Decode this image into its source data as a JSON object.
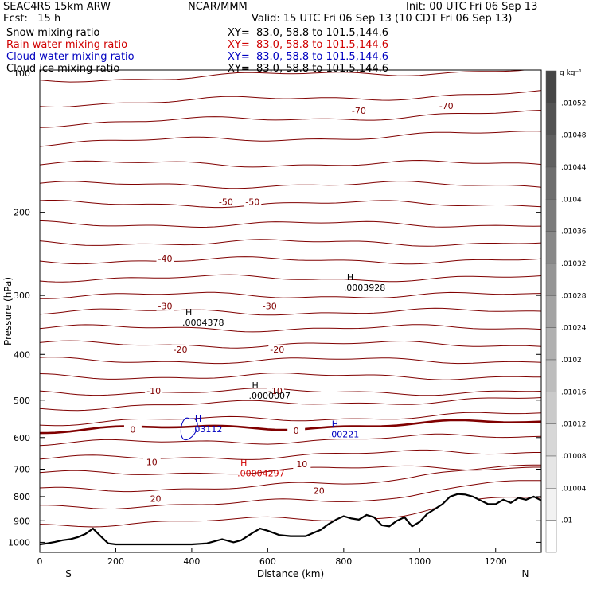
{
  "header": {
    "left1": "SEAC4RS 15km ARW",
    "left2": "Fcst:   15 h",
    "center": "NCAR/MMM",
    "init": "Init: 00 UTC Fri 06 Sep 13",
    "valid": "Valid: 15 UTC Fri 06 Sep 13 (10 CDT Fri 06 Sep 13)",
    "fields": [
      {
        "name": "Snow mixing ratio",
        "xy": "XY=  83.0, 58.8 to 101.5,144.6",
        "color": "#000000"
      },
      {
        "name": "Rain water mixing ratio",
        "xy": "XY=  83.0, 58.8 to 101.5,144.6",
        "color": "#d00000"
      },
      {
        "name": "Cloud water mixing ratio",
        "xy": "XY=  83.0, 58.8 to 101.5,144.6",
        "color": "#0000c0"
      },
      {
        "name": "Cloud ice mixing ratio",
        "xy": "XY=  83.0, 58.8 to 101.5,144.6",
        "color": "#000000"
      }
    ]
  },
  "chart_data": {
    "type": "cross-section",
    "xlabel": "Distance (km)",
    "ylabel": "Pressure (hPa)",
    "xlim": [
      0,
      1320
    ],
    "ylim": [
      1050,
      100
    ],
    "yscale": "log",
    "x_ticks": [
      "0",
      "200",
      "400",
      "600",
      "800",
      "1000",
      "1200"
    ],
    "y_ticks": [
      "200",
      "300",
      "400",
      "500",
      "600",
      "700",
      "800",
      "900",
      "1000"
    ],
    "y_top_tick": "100",
    "end_labels": {
      "left": "S",
      "right": "N"
    },
    "temperature_contours": {
      "units": "C",
      "labels": [
        {
          "x": 840,
          "p": 122,
          "text": "-70"
        },
        {
          "x": 1070,
          "p": 119,
          "text": "-70"
        },
        {
          "x": 490,
          "p": 190,
          "text": "-50"
        },
        {
          "x": 560,
          "p": 190,
          "text": "-50"
        },
        {
          "x": 330,
          "p": 251,
          "text": "-40"
        },
        {
          "x": 330,
          "p": 316,
          "text": "-30"
        },
        {
          "x": 605,
          "p": 316,
          "text": "-30"
        },
        {
          "x": 370,
          "p": 390,
          "text": "-20"
        },
        {
          "x": 625,
          "p": 390,
          "text": "-20"
        },
        {
          "x": 300,
          "p": 478,
          "text": "-10"
        },
        {
          "x": 620,
          "p": 478,
          "text": "-10"
        },
        {
          "x": 245,
          "p": 577,
          "text": "0"
        },
        {
          "x": 675,
          "p": 580,
          "text": "0"
        },
        {
          "x": 295,
          "p": 676,
          "text": "10"
        },
        {
          "x": 690,
          "p": 683,
          "text": "10"
        },
        {
          "x": 305,
          "p": 808,
          "text": "20"
        },
        {
          "x": 735,
          "p": 778,
          "text": "20"
        }
      ]
    },
    "maxima": [
      {
        "field": "Snow mixing ratio",
        "x": 800,
        "p": 282,
        "text": ".0003928",
        "color": "#000000"
      },
      {
        "field": "Snow mixing ratio",
        "x": 375,
        "p": 334,
        "text": ".0004378",
        "color": "#000000"
      },
      {
        "field": "Cloud ice mixing ratio",
        "x": 550,
        "p": 478,
        "text": ".0000007",
        "color": "#000000"
      },
      {
        "field": "Cloud water mixing ratio",
        "x": 400,
        "p": 562,
        "text": ".03112",
        "color": "#0000c0"
      },
      {
        "field": "Cloud water mixing ratio",
        "x": 760,
        "p": 577,
        "text": ".00221",
        "color": "#0000c0"
      },
      {
        "field": "Rain water mixing ratio",
        "x": 520,
        "p": 697,
        "text": ".00004297",
        "color": "#d00000"
      }
    ],
    "max_marker": "H",
    "terrain": {
      "x": [
        0,
        20,
        40,
        60,
        80,
        100,
        120,
        140,
        160,
        180,
        200,
        300,
        400,
        440,
        480,
        510,
        530,
        560,
        580,
        600,
        630,
        660,
        700,
        740,
        760,
        780,
        800,
        820,
        840,
        860,
        880,
        900,
        920,
        940,
        960,
        980,
        1000,
        1020,
        1040,
        1060,
        1080,
        1100,
        1120,
        1140,
        1160,
        1180,
        1200,
        1220,
        1240,
        1260,
        1280,
        1300,
        1320
      ],
      "p": [
        1010,
        1005,
        998,
        990,
        985,
        975,
        960,
        935,
        970,
        1005,
        1010,
        1010,
        1010,
        1005,
        985,
        1000,
        990,
        955,
        935,
        945,
        965,
        970,
        970,
        940,
        915,
        895,
        880,
        890,
        895,
        875,
        885,
        920,
        925,
        900,
        885,
        925,
        905,
        870,
        850,
        830,
        800,
        790,
        792,
        800,
        815,
        830,
        830,
        812,
        825,
        805,
        812,
        800,
        815
      ]
    },
    "colorbar": {
      "units": "g kg⁻¹",
      "labels": [
        ".01052",
        ".01048",
        ".01044",
        ".0104",
        ".01036",
        ".01032",
        ".01028",
        ".01024",
        ".0102",
        ".01016",
        ".01012",
        ".01008",
        ".01004",
        ".01"
      ]
    },
    "colors": {
      "temperature": "#800000",
      "zero_isotherm": "#800000",
      "snow": "#000000",
      "rain": "#d00000",
      "cloud_water": "#0000c0",
      "terrain": "#000000"
    }
  }
}
